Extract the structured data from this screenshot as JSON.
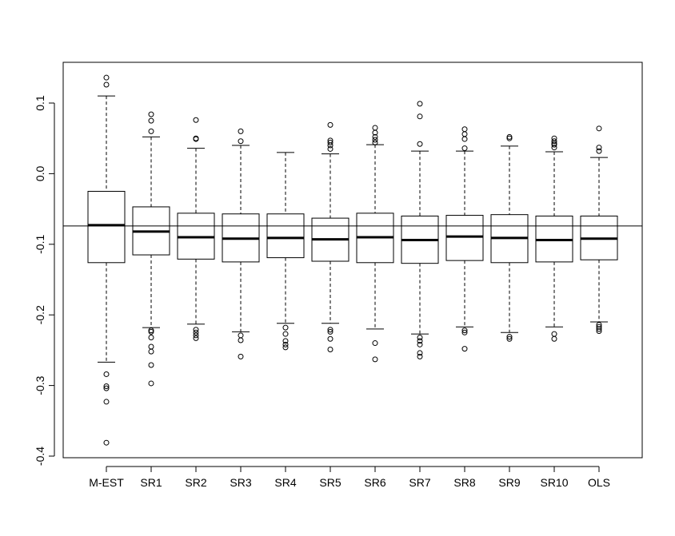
{
  "chart_data": {
    "type": "boxplot",
    "title": "",
    "xlabel": "",
    "ylabel": "",
    "ylim": [
      -0.4,
      0.15
    ],
    "yticks": [
      -0.4,
      -0.3,
      -0.2,
      -0.1,
      0.0,
      0.1
    ],
    "ytick_labels": [
      "-0.4",
      "-0.3",
      "-0.2",
      "-0.1",
      "0.0",
      "0.1"
    ],
    "reference_line_y": -0.074,
    "categories": [
      "M-EST",
      "SR1",
      "SR2",
      "SR3",
      "SR4",
      "SR5",
      "SR6",
      "SR7",
      "SR8",
      "SR9",
      "SR10",
      "OLS"
    ],
    "boxes": [
      {
        "name": "M-EST",
        "whisker_low": -0.267,
        "q1": -0.126,
        "median": -0.073,
        "q3": -0.025,
        "whisker_high": 0.11,
        "outliers": [
          0.136,
          0.126,
          -0.284,
          -0.301,
          -0.304,
          -0.323,
          -0.381
        ]
      },
      {
        "name": "SR1",
        "whisker_low": -0.218,
        "q1": -0.115,
        "median": -0.082,
        "q3": -0.047,
        "whisker_high": 0.052,
        "outliers": [
          0.084,
          0.075,
          0.06,
          -0.222,
          -0.224,
          -0.232,
          -0.245,
          -0.252,
          -0.271,
          -0.297
        ]
      },
      {
        "name": "SR2",
        "whisker_low": -0.213,
        "q1": -0.121,
        "median": -0.09,
        "q3": -0.056,
        "whisker_high": 0.036,
        "outliers": [
          0.076,
          0.05,
          0.049,
          -0.221,
          -0.225,
          -0.229,
          -0.233
        ]
      },
      {
        "name": "SR3",
        "whisker_low": -0.224,
        "q1": -0.125,
        "median": -0.092,
        "q3": -0.057,
        "whisker_high": 0.04,
        "outliers": [
          0.06,
          0.046,
          -0.229,
          -0.236,
          -0.259
        ]
      },
      {
        "name": "SR4",
        "whisker_low": -0.212,
        "q1": -0.119,
        "median": -0.091,
        "q3": -0.057,
        "whisker_high": 0.03,
        "outliers": [
          -0.218,
          -0.227,
          -0.237,
          -0.242,
          -0.246
        ]
      },
      {
        "name": "SR5",
        "whisker_low": -0.212,
        "q1": -0.124,
        "median": -0.093,
        "q3": -0.063,
        "whisker_high": 0.028,
        "outliers": [
          0.069,
          0.047,
          0.044,
          0.04,
          0.035,
          -0.221,
          -0.224,
          -0.234,
          -0.249
        ]
      },
      {
        "name": "SR6",
        "whisker_low": -0.22,
        "q1": -0.126,
        "median": -0.09,
        "q3": -0.056,
        "whisker_high": 0.041,
        "outliers": [
          0.065,
          0.058,
          0.052,
          0.048,
          0.044,
          -0.24,
          -0.263
        ]
      },
      {
        "name": "SR7",
        "whisker_low": -0.227,
        "q1": -0.127,
        "median": -0.094,
        "q3": -0.06,
        "whisker_high": 0.032,
        "outliers": [
          0.099,
          0.081,
          0.042,
          -0.232,
          -0.237,
          -0.242,
          -0.254,
          -0.259
        ]
      },
      {
        "name": "SR8",
        "whisker_low": -0.217,
        "q1": -0.123,
        "median": -0.089,
        "q3": -0.059,
        "whisker_high": 0.032,
        "outliers": [
          0.063,
          0.056,
          0.049,
          0.036,
          -0.222,
          -0.225,
          -0.248
        ]
      },
      {
        "name": "SR9",
        "whisker_low": -0.225,
        "q1": -0.126,
        "median": -0.091,
        "q3": -0.058,
        "whisker_high": 0.039,
        "outliers": [
          0.052,
          0.05,
          -0.231,
          -0.234
        ]
      },
      {
        "name": "SR10",
        "whisker_low": -0.217,
        "q1": -0.125,
        "median": -0.094,
        "q3": -0.06,
        "whisker_high": 0.031,
        "outliers": [
          0.05,
          0.046,
          0.043,
          0.041,
          0.037,
          -0.227,
          -0.234
        ]
      },
      {
        "name": "OLS",
        "whisker_low": -0.21,
        "q1": -0.122,
        "median": -0.092,
        "q3": -0.06,
        "whisker_high": 0.023,
        "outliers": [
          0.064,
          0.037,
          0.032,
          -0.214,
          -0.217,
          -0.22,
          -0.223
        ]
      }
    ],
    "grid": false,
    "legend": "none",
    "colors": {
      "stroke": "#000000",
      "background": "#ffffff"
    }
  }
}
